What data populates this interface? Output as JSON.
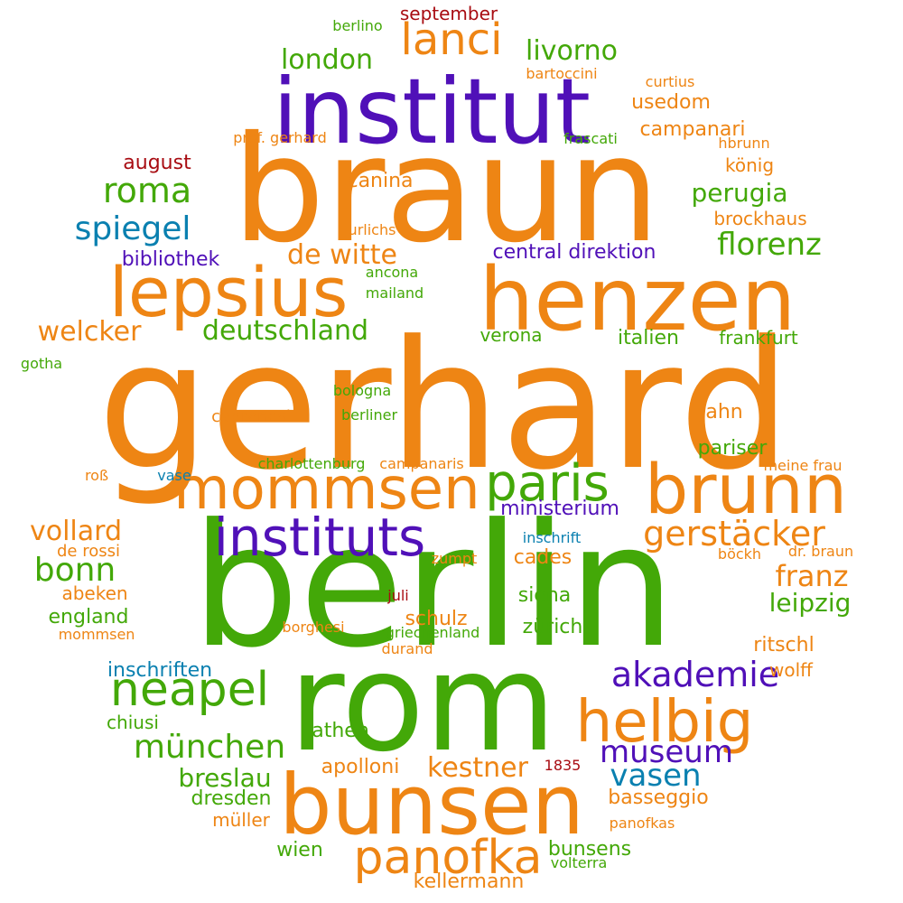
{
  "colors": {
    "orange": "#ee8514",
    "green": "#43a808",
    "purple": "#5010b8",
    "blue": "#0a80b0",
    "red": "#a80c12"
  },
  "words": [
    {
      "text": "gerhard",
      "color": "orange"
    },
    {
      "text": "berlin",
      "color": "green"
    },
    {
      "text": "braun",
      "color": "orange"
    },
    {
      "text": "rom",
      "color": "green"
    },
    {
      "text": "institut",
      "color": "purple"
    },
    {
      "text": "henzen",
      "color": "orange"
    },
    {
      "text": "bunsen",
      "color": "orange"
    },
    {
      "text": "lepsius",
      "color": "orange"
    },
    {
      "text": "brunn",
      "color": "orange"
    },
    {
      "text": "mommsen",
      "color": "orange"
    },
    {
      "text": "instituts",
      "color": "purple"
    },
    {
      "text": "helbig",
      "color": "orange"
    },
    {
      "text": "paris",
      "color": "green"
    },
    {
      "text": "neapel",
      "color": "green"
    },
    {
      "text": "panofka",
      "color": "orange"
    },
    {
      "text": "lanci",
      "color": "orange"
    },
    {
      "text": "akademie",
      "color": "purple"
    },
    {
      "text": "münchen",
      "color": "green"
    },
    {
      "text": "gerstäcker",
      "color": "orange"
    },
    {
      "text": "museum",
      "color": "purple"
    },
    {
      "text": "vasen",
      "color": "blue"
    },
    {
      "text": "roma",
      "color": "green"
    },
    {
      "text": "florenz",
      "color": "green"
    },
    {
      "text": "franz",
      "color": "orange"
    },
    {
      "text": "bonn",
      "color": "green"
    },
    {
      "text": "spiegel",
      "color": "blue"
    },
    {
      "text": "deutschland",
      "color": "green"
    },
    {
      "text": "kestner",
      "color": "orange"
    },
    {
      "text": "london",
      "color": "green"
    },
    {
      "text": "livorno",
      "color": "green"
    },
    {
      "text": "de witte",
      "color": "orange"
    },
    {
      "text": "perugia",
      "color": "green"
    },
    {
      "text": "leipzig",
      "color": "green"
    },
    {
      "text": "breslau",
      "color": "green"
    },
    {
      "text": "vollard",
      "color": "orange"
    },
    {
      "text": "welcker",
      "color": "orange"
    },
    {
      "text": "bunsens",
      "color": "green"
    },
    {
      "text": "kellermann",
      "color": "orange"
    },
    {
      "text": "central direktion",
      "color": "purple"
    },
    {
      "text": "bibliothek",
      "color": "purple"
    },
    {
      "text": "ministerium",
      "color": "purple"
    },
    {
      "text": "inschriften",
      "color": "blue"
    },
    {
      "text": "campanari",
      "color": "orange"
    },
    {
      "text": "usedom",
      "color": "orange"
    },
    {
      "text": "italien",
      "color": "green"
    },
    {
      "text": "frankfurt",
      "color": "green"
    },
    {
      "text": "jahn",
      "color": "orange"
    },
    {
      "text": "pariser",
      "color": "green"
    },
    {
      "text": "siena",
      "color": "green"
    },
    {
      "text": "schulz",
      "color": "orange"
    },
    {
      "text": "zürich",
      "color": "green"
    },
    {
      "text": "ritschl",
      "color": "orange"
    },
    {
      "text": "wolff",
      "color": "orange"
    },
    {
      "text": "apolloni",
      "color": "orange"
    },
    {
      "text": "athen",
      "color": "green"
    },
    {
      "text": "basseggio",
      "color": "orange"
    },
    {
      "text": "dresden",
      "color": "green"
    },
    {
      "text": "england",
      "color": "green"
    },
    {
      "text": "abeken",
      "color": "orange"
    },
    {
      "text": "chiusi",
      "color": "green"
    },
    {
      "text": "müller",
      "color": "orange"
    },
    {
      "text": "wien",
      "color": "green"
    },
    {
      "text": "cades",
      "color": "orange"
    },
    {
      "text": "canina",
      "color": "orange"
    },
    {
      "text": "könig",
      "color": "orange"
    },
    {
      "text": "brockhaus",
      "color": "orange"
    },
    {
      "text": "august",
      "color": "red"
    },
    {
      "text": "september",
      "color": "red"
    },
    {
      "text": "capranesi",
      "color": "orange"
    },
    {
      "text": "verona",
      "color": "green"
    },
    {
      "text": "de rossi",
      "color": "orange"
    },
    {
      "text": "berlino",
      "color": "green"
    },
    {
      "text": "bartoccini",
      "color": "orange"
    },
    {
      "text": "curtius",
      "color": "orange"
    },
    {
      "text": "prof. gerhard",
      "color": "orange"
    },
    {
      "text": "frascati",
      "color": "green"
    },
    {
      "text": "hbrunn",
      "color": "orange"
    },
    {
      "text": "urlichs",
      "color": "orange"
    },
    {
      "text": "ancona",
      "color": "green"
    },
    {
      "text": "mailand",
      "color": "green"
    },
    {
      "text": "gotha",
      "color": "green"
    },
    {
      "text": "bologna",
      "color": "green"
    },
    {
      "text": "berliner",
      "color": "green"
    },
    {
      "text": "charlottenburg",
      "color": "green"
    },
    {
      "text": "campanaris",
      "color": "orange"
    },
    {
      "text": "meine frau",
      "color": "orange"
    },
    {
      "text": "roß",
      "color": "orange"
    },
    {
      "text": "vase",
      "color": "blue"
    },
    {
      "text": "inschrift",
      "color": "blue"
    },
    {
      "text": "böckh",
      "color": "orange"
    },
    {
      "text": "dr. braun",
      "color": "orange"
    },
    {
      "text": "zumpt",
      "color": "orange"
    },
    {
      "text": "juli",
      "color": "red"
    },
    {
      "text": "borghesi",
      "color": "orange"
    },
    {
      "text": "griechenland",
      "color": "green"
    },
    {
      "text": "mommsen",
      "color": "orange"
    },
    {
      "text": "durand",
      "color": "orange"
    },
    {
      "text": "1835",
      "color": "red"
    },
    {
      "text": "panofkas",
      "color": "orange"
    },
    {
      "text": "volterra",
      "color": "green"
    }
  ]
}
